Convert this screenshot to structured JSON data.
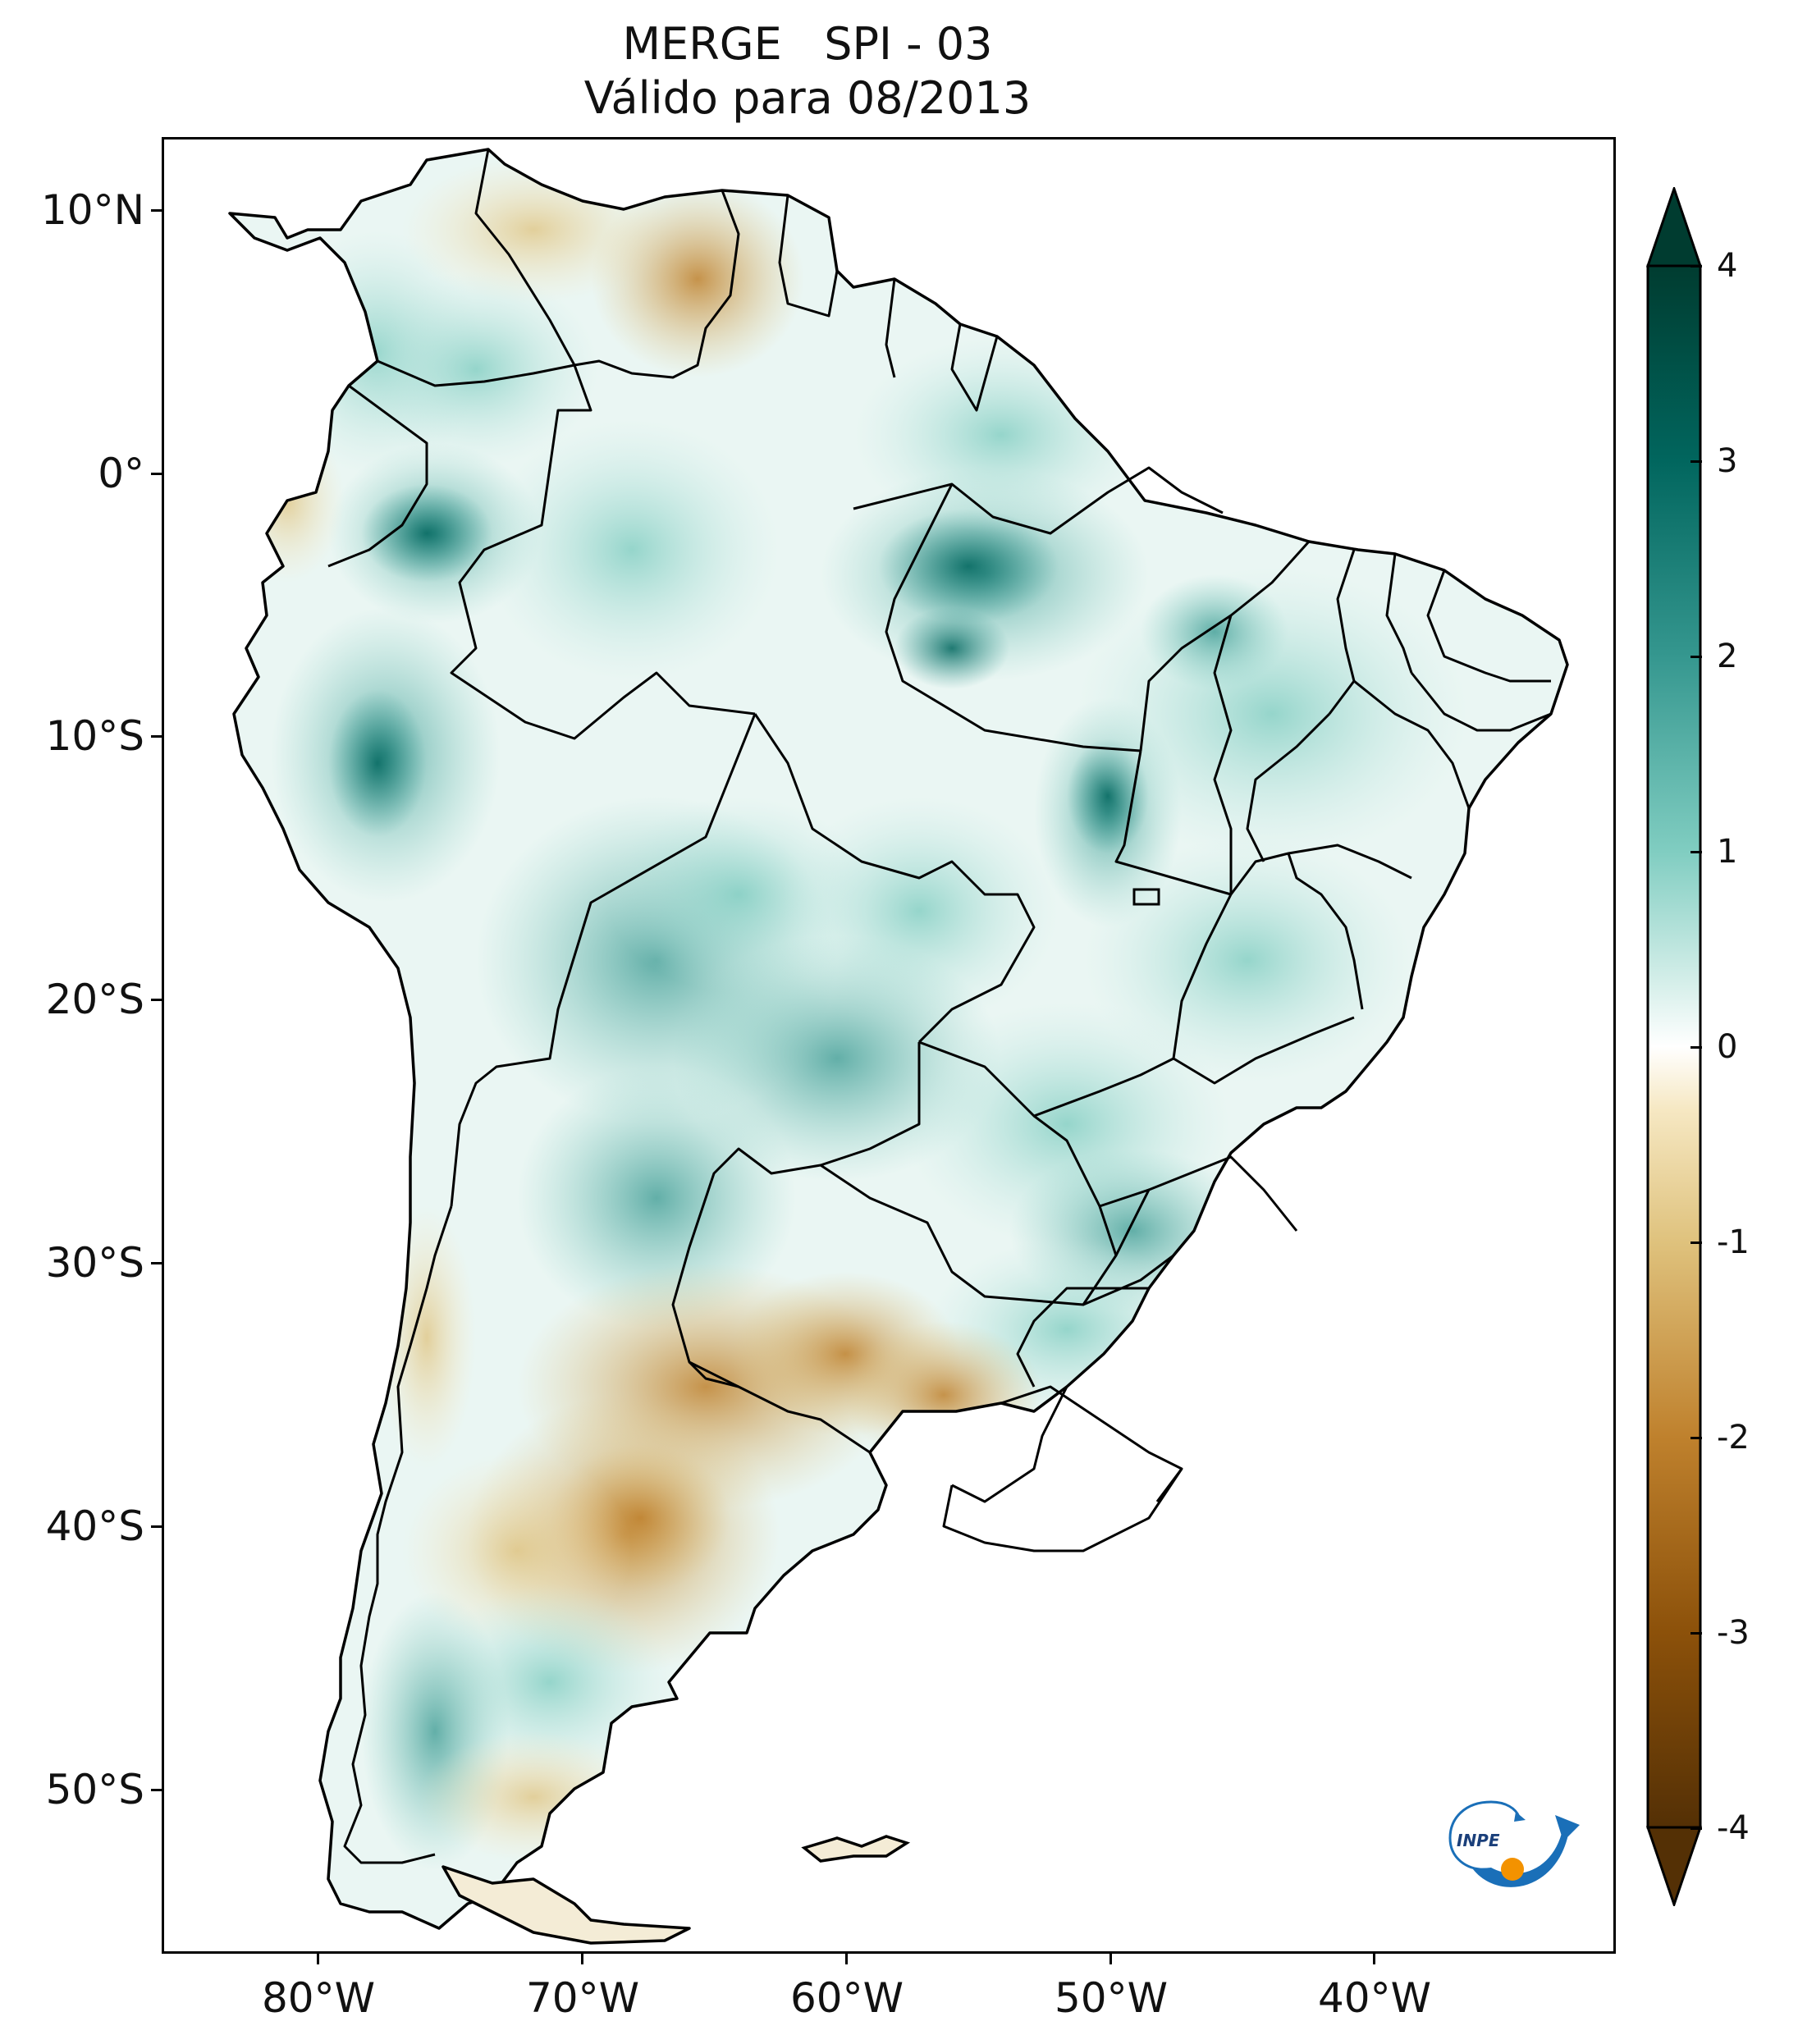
{
  "title": {
    "line1": "MERGE   SPI - 03",
    "line2": "Válido para 08/2013"
  },
  "map": {
    "latitude_labels": [
      "10°N",
      "0°",
      "10°S",
      "20°S",
      "30°S",
      "40°S",
      "50°S"
    ],
    "longitude_labels": [
      "80°W",
      "70°W",
      "60°W",
      "50°W",
      "40°W"
    ],
    "region": "South America",
    "extent": {
      "lon_min": -85,
      "lon_max": -30,
      "lat_min": -56,
      "lat_max": 13
    }
  },
  "colorbar": {
    "labels": [
      "4",
      "3",
      "2",
      "1",
      "0",
      "-1",
      "-2",
      "-3",
      "-4"
    ],
    "values": [
      4,
      3,
      2,
      1,
      0,
      -1,
      -2,
      -3,
      -4
    ],
    "extend": "both",
    "colors": {
      "max": "#003c30",
      "wet_strong": "#01665e",
      "wet": "#35978f",
      "wet_light": "#80cdc1",
      "wet_pale": "#c7eae5",
      "neutral": "#ffffff",
      "dry_pale": "#f6e8c3",
      "dry_light": "#dfc27d",
      "dry": "#bf812d",
      "dry_strong": "#8c510a",
      "min": "#543005"
    }
  },
  "logo": {
    "text": "INPE",
    "colors": {
      "blue": "#1a6fb8",
      "orange": "#f39200"
    }
  }
}
